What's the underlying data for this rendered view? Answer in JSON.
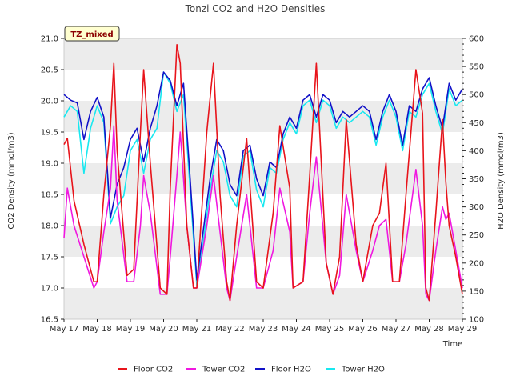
{
  "chart_data": {
    "type": "line",
    "title": "Tonzi CO2 and H2O Densities",
    "badge": "TZ_mixed",
    "xlabel": "Time",
    "ylabel": "CO2 Density (mmol/m3)",
    "y2label": "H2O Density (mmol/m3)",
    "x_ticks": [
      "May 17",
      "May 18",
      "May 19",
      "May 20",
      "May 21",
      "May 22",
      "May 23",
      "May 24",
      "May 25",
      "May 26",
      "May 27",
      "May 28",
      "May 29"
    ],
    "xlim": [
      17,
      29
    ],
    "ylim": [
      16.5,
      21.0
    ],
    "y_ticks": [
      "16.5",
      "17.0",
      "17.5",
      "18.0",
      "18.5",
      "19.0",
      "19.5",
      "20.0",
      "20.5",
      "21.0"
    ],
    "y2lim": [
      100,
      600
    ],
    "y2_ticks": [
      "100",
      "150",
      "200",
      "250",
      "300",
      "350",
      "400",
      "450",
      "500",
      "550",
      "600"
    ],
    "bands": "alternating light gray horizontal bands",
    "legend_position": "bottom-center",
    "colors": {
      "floor_co2": "#e8141b",
      "tower_co2": "#f018e0",
      "floor_h2o": "#1212c8",
      "tower_h2o": "#18e8f0",
      "band": "#ececec"
    },
    "series": [
      {
        "name": "Floor CO2",
        "axis": "left",
        "x": [
          17.0,
          17.1,
          17.3,
          17.6,
          17.9,
          18.0,
          18.2,
          18.4,
          18.5,
          18.6,
          18.9,
          19.1,
          19.3,
          19.4,
          19.6,
          19.9,
          20.1,
          20.2,
          20.4,
          20.5,
          20.7,
          20.9,
          21.0,
          21.3,
          21.5,
          21.7,
          21.9,
          22.0,
          22.2,
          22.5,
          22.8,
          23.0,
          23.3,
          23.5,
          23.8,
          23.9,
          24.2,
          24.4,
          24.6,
          24.9,
          25.1,
          25.3,
          25.5,
          25.8,
          26.0,
          26.3,
          26.5,
          26.7,
          26.9,
          27.1,
          27.3,
          27.6,
          27.8,
          27.9,
          28.0,
          28.2,
          28.4,
          28.5,
          28.6,
          28.8,
          29.0
        ],
        "y": [
          19.3,
          19.4,
          18.4,
          17.7,
          17.1,
          17.1,
          18.5,
          19.6,
          20.6,
          19.2,
          17.2,
          17.3,
          19.5,
          20.5,
          19.0,
          17.0,
          16.9,
          18.6,
          20.9,
          20.6,
          18.0,
          17.0,
          17.0,
          19.5,
          20.6,
          18.5,
          17.1,
          16.8,
          18.0,
          19.4,
          17.1,
          17.0,
          18.2,
          19.6,
          18.6,
          17.0,
          17.1,
          18.8,
          20.6,
          17.4,
          16.9,
          17.5,
          19.7,
          17.7,
          17.1,
          18.0,
          18.2,
          19.0,
          17.1,
          17.1,
          18.5,
          20.5,
          19.8,
          17.0,
          16.8,
          18.2,
          19.7,
          18.7,
          18.0,
          17.5,
          16.9
        ]
      },
      {
        "name": "Tower CO2",
        "axis": "left",
        "x": [
          17.0,
          17.1,
          17.3,
          17.6,
          17.9,
          18.0,
          18.2,
          18.4,
          18.5,
          18.6,
          18.9,
          19.1,
          19.3,
          19.4,
          19.6,
          19.9,
          20.1,
          20.2,
          20.4,
          20.5,
          20.7,
          20.9,
          21.0,
          21.3,
          21.5,
          21.7,
          21.9,
          22.0,
          22.2,
          22.5,
          22.8,
          23.0,
          23.3,
          23.5,
          23.8,
          23.9,
          24.2,
          24.4,
          24.6,
          24.9,
          25.1,
          25.3,
          25.5,
          25.8,
          26.0,
          26.3,
          26.5,
          26.7,
          26.9,
          27.1,
          27.3,
          27.6,
          27.8,
          27.9,
          28.0,
          28.2,
          28.4,
          28.5,
          28.6,
          28.8,
          29.0
        ],
        "y": [
          17.8,
          18.6,
          18.0,
          17.5,
          17.0,
          17.1,
          17.9,
          18.6,
          19.6,
          18.4,
          17.1,
          17.1,
          18.0,
          18.8,
          18.2,
          16.9,
          16.9,
          17.5,
          18.8,
          19.5,
          18.0,
          17.0,
          17.0,
          18.0,
          18.8,
          17.9,
          17.0,
          16.8,
          17.5,
          18.5,
          17.0,
          17.0,
          17.6,
          18.6,
          17.9,
          17.0,
          17.1,
          18.2,
          19.1,
          17.4,
          16.9,
          17.2,
          18.5,
          17.6,
          17.1,
          17.6,
          18.0,
          18.1,
          17.1,
          17.1,
          17.7,
          18.9,
          18.0,
          16.9,
          16.8,
          17.6,
          18.3,
          18.1,
          18.2,
          17.6,
          17.0
        ]
      },
      {
        "name": "Floor H2O",
        "axis": "right",
        "x": [
          17.0,
          17.2,
          17.4,
          17.6,
          17.8,
          18.0,
          18.2,
          18.4,
          18.6,
          18.8,
          19.0,
          19.2,
          19.4,
          19.6,
          19.8,
          20.0,
          20.2,
          20.4,
          20.6,
          20.8,
          21.0,
          21.2,
          21.4,
          21.6,
          21.8,
          22.0,
          22.2,
          22.4,
          22.6,
          22.8,
          23.0,
          23.2,
          23.4,
          23.6,
          23.8,
          24.0,
          24.2,
          24.4,
          24.6,
          24.8,
          25.0,
          25.2,
          25.4,
          25.6,
          25.8,
          26.0,
          26.2,
          26.4,
          26.6,
          26.8,
          27.0,
          27.2,
          27.4,
          27.6,
          27.8,
          28.0,
          28.2,
          28.4,
          28.6,
          28.8,
          29.0
        ],
        "y": [
          500,
          490,
          485,
          420,
          470,
          495,
          460,
          280,
          340,
          370,
          420,
          440,
          380,
          440,
          480,
          540,
          525,
          480,
          520,
          350,
          170,
          260,
          350,
          420,
          400,
          340,
          320,
          400,
          410,
          350,
          320,
          380,
          370,
          430,
          460,
          440,
          490,
          500,
          460,
          500,
          490,
          450,
          470,
          460,
          470,
          480,
          470,
          420,
          470,
          500,
          470,
          410,
          480,
          470,
          510,
          530,
          480,
          440,
          520,
          490,
          510
        ]
      },
      {
        "name": "Tower H2O",
        "axis": "right",
        "x": [
          17.0,
          17.2,
          17.4,
          17.6,
          17.8,
          18.0,
          18.2,
          18.4,
          18.6,
          18.8,
          19.0,
          19.2,
          19.4,
          19.6,
          19.8,
          20.0,
          20.2,
          20.4,
          20.6,
          20.8,
          21.0,
          21.2,
          21.4,
          21.6,
          21.8,
          22.0,
          22.2,
          22.4,
          22.6,
          22.8,
          23.0,
          23.2,
          23.4,
          23.6,
          23.8,
          24.0,
          24.2,
          24.4,
          24.6,
          24.8,
          25.0,
          25.2,
          25.4,
          25.6,
          25.8,
          26.0,
          26.2,
          26.4,
          26.6,
          26.8,
          27.0,
          27.2,
          27.4,
          27.6,
          27.8,
          28.0,
          28.2,
          28.4,
          28.6,
          28.8,
          29.0
        ],
        "y": [
          460,
          480,
          470,
          360,
          440,
          480,
          450,
          270,
          300,
          320,
          400,
          420,
          360,
          420,
          440,
          540,
          520,
          470,
          500,
          330,
          160,
          240,
          330,
          400,
          380,
          320,
          300,
          390,
          400,
          330,
          300,
          370,
          360,
          420,
          450,
          430,
          480,
          490,
          450,
          490,
          480,
          440,
          460,
          450,
          460,
          470,
          460,
          410,
          460,
          490,
          460,
          400,
          470,
          460,
          500,
          520,
          470,
          430,
          510,
          480,
          490
        ]
      }
    ],
    "legend": [
      "Floor CO2",
      "Tower CO2",
      "Floor H2O",
      "Tower H2O"
    ]
  }
}
